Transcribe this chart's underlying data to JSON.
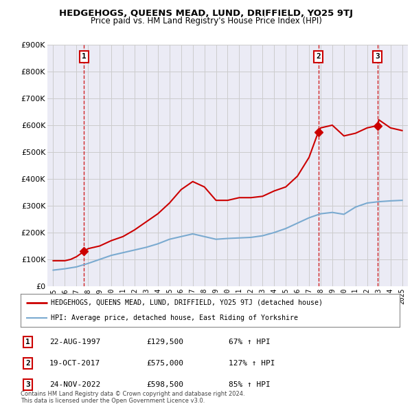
{
  "title": "HEDGEHOGS, QUEENS MEAD, LUND, DRIFFIELD, YO25 9TJ",
  "subtitle": "Price paid vs. HM Land Registry's House Price Index (HPI)",
  "legend_line1": "HEDGEHOGS, QUEENS MEAD, LUND, DRIFFIELD, YO25 9TJ (detached house)",
  "legend_line2": "HPI: Average price, detached house, East Riding of Yorkshire",
  "footer1": "Contains HM Land Registry data © Crown copyright and database right 2024.",
  "footer2": "This data is licensed under the Open Government Licence v3.0.",
  "transactions": [
    {
      "label": "1",
      "date": "22-AUG-1997",
      "price": 129500,
      "pct": "67% ↑ HPI",
      "year": 1997.64
    },
    {
      "label": "2",
      "date": "19-OCT-2017",
      "price": 575000,
      "pct": "127% ↑ HPI",
      "year": 2017.8
    },
    {
      "label": "3",
      "date": "24-NOV-2022",
      "price": 598500,
      "pct": "85% ↑ HPI",
      "year": 2022.9
    }
  ],
  "red_line_x": [
    1995,
    1995.5,
    1996,
    1996.5,
    1997,
    1997.64,
    1998,
    1999,
    2000,
    2001,
    2002,
    2003,
    2004,
    2005,
    2006,
    2007,
    2008,
    2009,
    2010,
    2011,
    2012,
    2013,
    2014,
    2015,
    2016,
    2017,
    2017.8,
    2018,
    2019,
    2020,
    2021,
    2022,
    2022.9,
    2023,
    2024,
    2025
  ],
  "red_line_y": [
    95000,
    95000,
    95000,
    100000,
    110000,
    129500,
    140000,
    150000,
    170000,
    185000,
    210000,
    240000,
    270000,
    310000,
    360000,
    390000,
    370000,
    320000,
    320000,
    330000,
    330000,
    335000,
    355000,
    370000,
    410000,
    480000,
    575000,
    590000,
    600000,
    560000,
    570000,
    590000,
    598500,
    620000,
    590000,
    580000
  ],
  "blue_line_x": [
    1995,
    1996,
    1997,
    1998,
    1999,
    2000,
    2001,
    2002,
    2003,
    2004,
    2005,
    2006,
    2007,
    2008,
    2009,
    2010,
    2011,
    2012,
    2013,
    2014,
    2015,
    2016,
    2017,
    2018,
    2019,
    2020,
    2021,
    2022,
    2023,
    2024,
    2025
  ],
  "blue_line_y": [
    60000,
    65000,
    72000,
    85000,
    100000,
    115000,
    125000,
    135000,
    145000,
    158000,
    175000,
    185000,
    195000,
    185000,
    175000,
    178000,
    180000,
    182000,
    188000,
    200000,
    215000,
    235000,
    255000,
    270000,
    275000,
    268000,
    295000,
    310000,
    315000,
    318000,
    320000
  ],
  "ylim": [
    0,
    900000
  ],
  "xlim": [
    1994.5,
    2025.5
  ],
  "yticks": [
    0,
    100000,
    200000,
    300000,
    400000,
    500000,
    600000,
    700000,
    800000,
    900000
  ],
  "ytick_labels": [
    "£0",
    "£100K",
    "£200K",
    "£300K",
    "£400K",
    "£500K",
    "£600K",
    "£700K",
    "£800K",
    "£900K"
  ],
  "xticks": [
    1995,
    1996,
    1997,
    1998,
    1999,
    2000,
    2001,
    2002,
    2003,
    2004,
    2005,
    2006,
    2007,
    2008,
    2009,
    2010,
    2011,
    2012,
    2013,
    2014,
    2015,
    2016,
    2017,
    2018,
    2019,
    2020,
    2021,
    2022,
    2023,
    2024,
    2025
  ],
  "red_color": "#cc0000",
  "blue_color": "#7aaad0",
  "dashed_color": "#cc0000",
  "grid_color": "#cccccc",
  "bg_color": "#ffffff",
  "plot_bg_color": "#ebebf5"
}
